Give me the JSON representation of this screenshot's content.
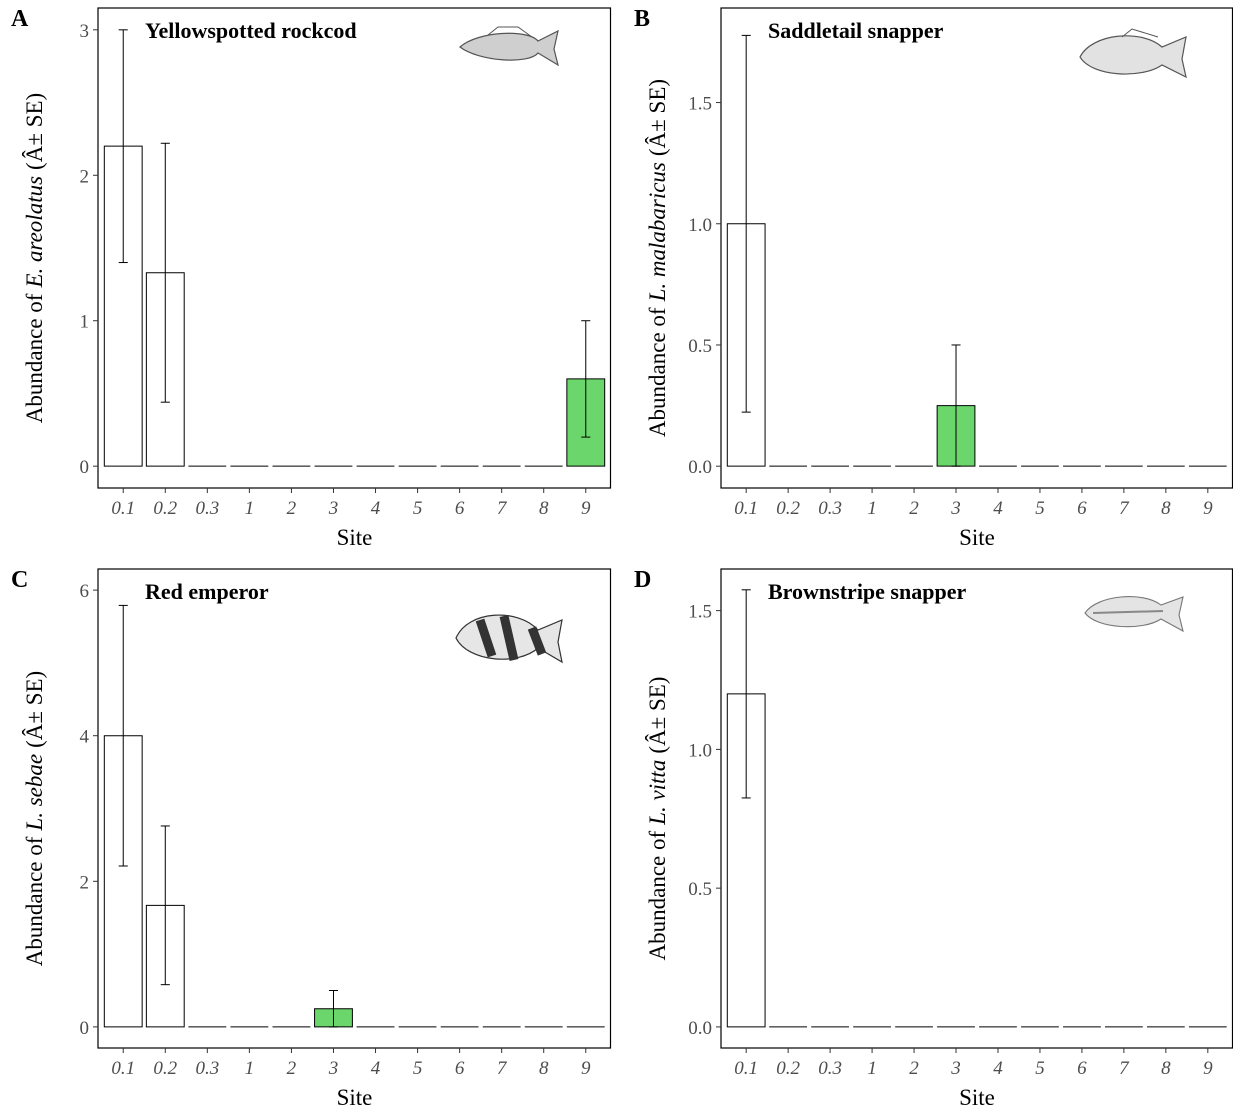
{
  "chart_data": [
    {
      "type": "bar",
      "panel": "A",
      "title": "Yellowspotted rockcod",
      "ylabel_prefix": "Abundance of",
      "ylabel_species": "E. areolatus",
      "ylabel_suffix": "(Â± SE)",
      "xlabel": "Site",
      "categories": [
        "0.1",
        "0.2",
        "0.3",
        "1",
        "2",
        "3",
        "4",
        "5",
        "6",
        "7",
        "8",
        "9"
      ],
      "values": [
        2.2,
        1.33,
        0,
        0,
        0,
        0,
        0,
        0,
        0,
        0,
        0,
        0.6
      ],
      "errors": [
        0.8,
        0.89,
        null,
        null,
        null,
        null,
        null,
        null,
        null,
        null,
        null,
        0.4
      ],
      "colors": [
        "#ffffff",
        "#ffffff",
        "#ffffff",
        "#ffffff",
        "#ffffff",
        "#ffffff",
        "#ffffff",
        "#ffffff",
        "#ffffff",
        "#ffffff",
        "#ffffff",
        "#6bd66b"
      ],
      "ylim": [
        -0.15,
        3.15
      ],
      "yticks": [
        0,
        1,
        2,
        3
      ]
    },
    {
      "type": "bar",
      "panel": "B",
      "title": "Saddletail snapper",
      "ylabel_prefix": "Abundance of",
      "ylabel_species": "L. malabaricus",
      "ylabel_suffix": "(Â± SE)",
      "xlabel": "Site",
      "categories": [
        "0.1",
        "0.2",
        "0.3",
        "1",
        "2",
        "3",
        "4",
        "5",
        "6",
        "7",
        "8",
        "9"
      ],
      "values": [
        1.0,
        0,
        0,
        0,
        0,
        0.25,
        0,
        0,
        0,
        0,
        0,
        0
      ],
      "errors": [
        0.777,
        null,
        null,
        null,
        null,
        0.25,
        null,
        null,
        null,
        null,
        null,
        null
      ],
      "colors": [
        "#ffffff",
        "#ffffff",
        "#ffffff",
        "#ffffff",
        "#ffffff",
        "#6bd66b",
        "#ffffff",
        "#ffffff",
        "#ffffff",
        "#ffffff",
        "#ffffff",
        "#ffffff"
      ],
      "ylim": [
        -0.09,
        1.89
      ],
      "yticks": [
        {
          "value": 0,
          "label": "0.0"
        },
        0.5,
        {
          "value": 1,
          "label": "1.0"
        },
        1.5
      ]
    },
    {
      "type": "bar",
      "panel": "C",
      "title": "Red emperor",
      "ylabel_prefix": "Abundance of",
      "ylabel_species": "L. sebae",
      "ylabel_suffix": "(Â± SE)",
      "xlabel": "Site",
      "categories": [
        "0.1",
        "0.2",
        "0.3",
        "1",
        "2",
        "3",
        "4",
        "5",
        "6",
        "7",
        "8",
        "9"
      ],
      "values": [
        4.0,
        1.67,
        0,
        0,
        0,
        0.25,
        0,
        0,
        0,
        0,
        0,
        0
      ],
      "errors": [
        1.79,
        1.09,
        null,
        null,
        null,
        0.25,
        null,
        null,
        null,
        null,
        null,
        null
      ],
      "colors": [
        "#ffffff",
        "#ffffff",
        "#ffffff",
        "#ffffff",
        "#ffffff",
        "#6bd66b",
        "#ffffff",
        "#ffffff",
        "#ffffff",
        "#ffffff",
        "#ffffff",
        "#ffffff"
      ],
      "ylim": [
        -0.29,
        6.29
      ],
      "yticks": [
        0,
        2,
        4,
        6
      ]
    },
    {
      "type": "bar",
      "panel": "D",
      "title": "Brownstripe snapper",
      "ylabel_prefix": "Abundance of",
      "ylabel_species": "L. vitta",
      "ylabel_suffix": "(Â± SE)",
      "xlabel": "Site",
      "categories": [
        "0.1",
        "0.2",
        "0.3",
        "1",
        "2",
        "3",
        "4",
        "5",
        "6",
        "7",
        "8",
        "9"
      ],
      "values": [
        1.2,
        0,
        0,
        0,
        0,
        0,
        0,
        0,
        0,
        0,
        0,
        0
      ],
      "errors": [
        0.375,
        null,
        null,
        null,
        null,
        null,
        null,
        null,
        null,
        null,
        null,
        null
      ],
      "colors": [
        "#ffffff",
        "#ffffff",
        "#ffffff",
        "#ffffff",
        "#ffffff",
        "#ffffff",
        "#ffffff",
        "#ffffff",
        "#ffffff",
        "#ffffff",
        "#ffffff",
        "#ffffff"
      ],
      "ylim": [
        -0.076,
        1.65
      ],
      "yticks": [
        {
          "value": 0,
          "label": "0.0"
        },
        0.5,
        {
          "value": 1,
          "label": "1.0"
        },
        1.5
      ]
    }
  ]
}
